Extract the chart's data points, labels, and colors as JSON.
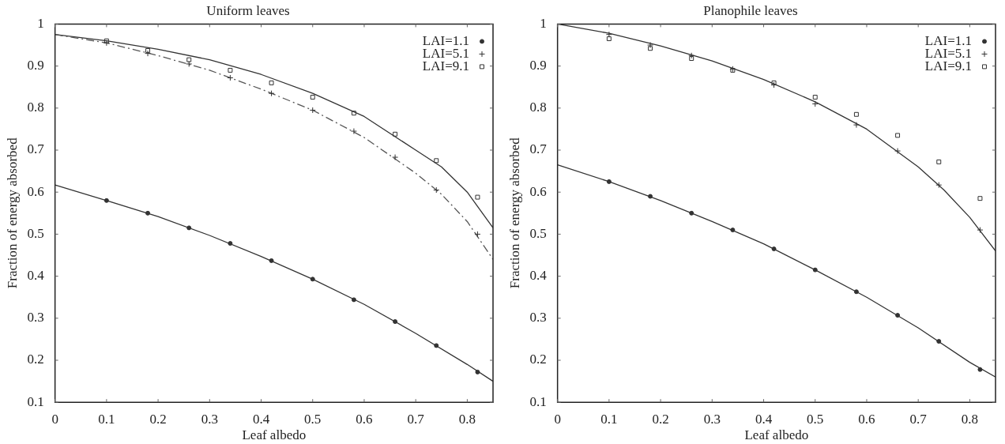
{
  "chart_data": [
    {
      "type": "scatter",
      "title": "Uniform leaves",
      "xlabel": "Leaf albedo",
      "ylabel": "Fraction of energy absorbed",
      "xlim": [
        0,
        0.85
      ],
      "ylim": [
        0.1,
        1
      ],
      "xticks": [
        0,
        0.1,
        0.2,
        0.3,
        0.4,
        0.5,
        0.6,
        0.7,
        0.8
      ],
      "yticks": [
        0.1,
        0.2,
        0.3,
        0.4,
        0.5,
        0.6,
        0.7,
        0.8,
        0.9,
        1
      ],
      "grid": false,
      "legend": "top right",
      "series": [
        {
          "type": "line",
          "color": "#333333",
          "marker": "none",
          "line_style": "solid",
          "x": [
            0,
            0.1,
            0.2,
            0.3,
            0.4,
            0.5,
            0.6,
            0.7,
            0.8,
            0.85
          ],
          "values": [
            0.617,
            0.58,
            0.542,
            0.497,
            0.447,
            0.393,
            0.333,
            0.264,
            0.19,
            0.15
          ]
        },
        {
          "type": "line",
          "color": "#555555",
          "marker": "none",
          "line_style": "dashed",
          "x": [
            0,
            0.1,
            0.2,
            0.3,
            0.4,
            0.5,
            0.6,
            0.7,
            0.75,
            0.8,
            0.85
          ],
          "values": [
            0.975,
            0.955,
            0.925,
            0.89,
            0.845,
            0.795,
            0.73,
            0.645,
            0.595,
            0.53,
            0.44
          ]
        },
        {
          "type": "line",
          "color": "#333333",
          "marker": "none",
          "line_style": "solid",
          "x": [
            0,
            0.1,
            0.2,
            0.3,
            0.4,
            0.5,
            0.6,
            0.7,
            0.75,
            0.8,
            0.85
          ],
          "values": [
            0.975,
            0.96,
            0.94,
            0.915,
            0.88,
            0.835,
            0.78,
            0.7,
            0.66,
            0.6,
            0.515
          ]
        },
        {
          "name": "LAI=1.1",
          "color": "#333333",
          "marker": "circle",
          "x": [
            0.1,
            0.18,
            0.26,
            0.34,
            0.42,
            0.5,
            0.58,
            0.66,
            0.74,
            0.82
          ],
          "values": [
            0.58,
            0.55,
            0.515,
            0.478,
            0.437,
            0.393,
            0.344,
            0.292,
            0.235,
            0.172
          ]
        },
        {
          "name": "LAI=5.1",
          "color": "#333333",
          "marker": "cross",
          "x": [
            0.1,
            0.18,
            0.26,
            0.34,
            0.42,
            0.5,
            0.58,
            0.66,
            0.74,
            0.82
          ],
          "values": [
            0.955,
            0.93,
            0.905,
            0.872,
            0.835,
            0.795,
            0.745,
            0.683,
            0.605,
            0.5
          ]
        },
        {
          "name": "LAI=9.1",
          "color": "#333333",
          "marker": "square",
          "x": [
            0.1,
            0.18,
            0.26,
            0.34,
            0.42,
            0.5,
            0.58,
            0.66,
            0.74,
            0.82
          ],
          "values": [
            0.96,
            0.937,
            0.915,
            0.89,
            0.86,
            0.826,
            0.788,
            0.738,
            0.675,
            0.588
          ]
        }
      ]
    },
    {
      "type": "scatter",
      "title": "Planophile leaves",
      "xlabel": "Leaf albedo",
      "ylabel": "Fraction of energy absorbed",
      "xlim": [
        0,
        0.85
      ],
      "ylim": [
        0.1,
        1
      ],
      "xticks": [
        0,
        0.1,
        0.2,
        0.3,
        0.4,
        0.5,
        0.6,
        0.7,
        0.8
      ],
      "yticks": [
        0.1,
        0.2,
        0.3,
        0.4,
        0.5,
        0.6,
        0.7,
        0.8,
        0.9,
        1
      ],
      "grid": false,
      "legend": "top right",
      "series": [
        {
          "type": "line",
          "color": "#333333",
          "marker": "none",
          "line_style": "solid",
          "x": [
            0,
            0.1,
            0.2,
            0.3,
            0.4,
            0.5,
            0.6,
            0.7,
            0.8,
            0.85
          ],
          "values": [
            0.665,
            0.625,
            0.58,
            0.53,
            0.477,
            0.415,
            0.35,
            0.277,
            0.195,
            0.16
          ]
        },
        {
          "type": "line",
          "color": "#333333",
          "marker": "none",
          "line_style": "solid",
          "x": [
            0,
            0.1,
            0.2,
            0.3,
            0.4,
            0.5,
            0.6,
            0.7,
            0.75,
            0.8,
            0.85
          ],
          "values": [
            1,
            0.978,
            0.948,
            0.912,
            0.868,
            0.815,
            0.75,
            0.66,
            0.605,
            0.54,
            0.46
          ]
        },
        {
          "name": "LAI=1.1",
          "color": "#333333",
          "marker": "circle",
          "x": [
            0.1,
            0.18,
            0.26,
            0.34,
            0.42,
            0.5,
            0.58,
            0.66,
            0.74,
            0.82
          ],
          "values": [
            0.625,
            0.59,
            0.55,
            0.51,
            0.465,
            0.415,
            0.363,
            0.307,
            0.245,
            0.178
          ]
        },
        {
          "name": "LAI=5.1",
          "color": "#333333",
          "marker": "cross",
          "x": [
            0.1,
            0.18,
            0.26,
            0.34,
            0.42,
            0.5,
            0.58,
            0.66,
            0.74,
            0.82
          ],
          "values": [
            0.975,
            0.95,
            0.925,
            0.893,
            0.855,
            0.81,
            0.76,
            0.698,
            0.617,
            0.51
          ]
        },
        {
          "name": "LAI=9.1",
          "color": "#333333",
          "marker": "square",
          "x": [
            0.1,
            0.18,
            0.26,
            0.34,
            0.42,
            0.5,
            0.58,
            0.66,
            0.74,
            0.82
          ],
          "values": [
            0.965,
            0.942,
            0.918,
            0.89,
            0.86,
            0.826,
            0.785,
            0.735,
            0.672,
            0.585
          ]
        }
      ]
    }
  ]
}
